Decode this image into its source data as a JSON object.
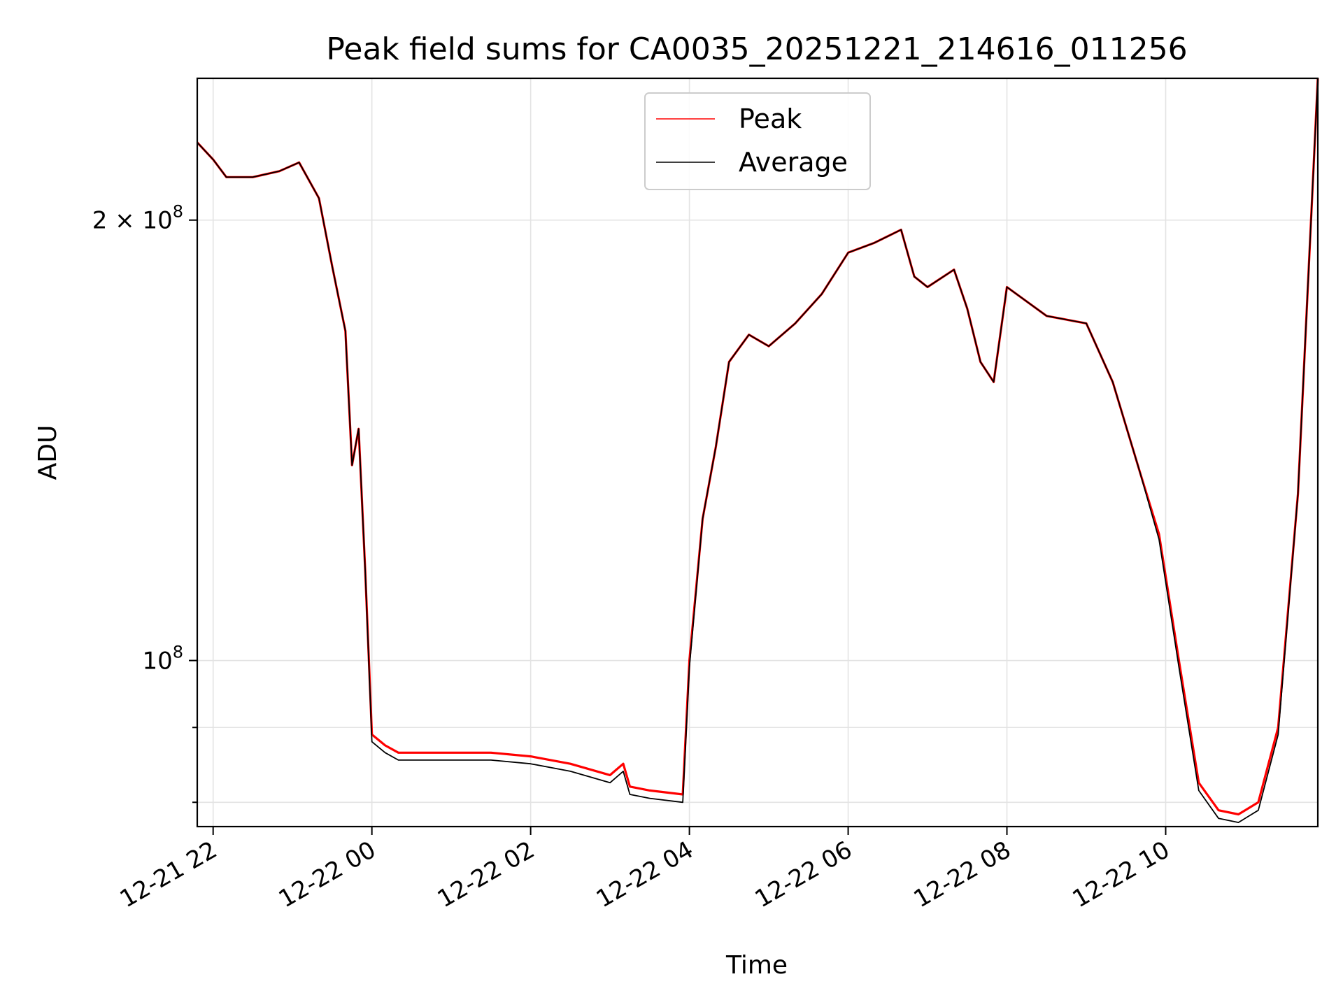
{
  "chart_data": {
    "type": "line",
    "title": "Peak field sums for CA0035_20251221_214616_011256",
    "xlabel": "Time",
    "ylabel": "ADU",
    "y_scale": "log",
    "grid": true,
    "legend_position": "top-center",
    "xlim": [
      "2025-12-21 21:48",
      "2025-12-22 11:55"
    ],
    "ylim": [
      77000000,
      250000000
    ],
    "x_ticks": [
      {
        "value": "2025-12-21 22:00",
        "label": "12-21 22"
      },
      {
        "value": "2025-12-22 00:00",
        "label": "12-22 00"
      },
      {
        "value": "2025-12-22 02:00",
        "label": "12-22 02"
      },
      {
        "value": "2025-12-22 04:00",
        "label": "12-22 04"
      },
      {
        "value": "2025-12-22 06:00",
        "label": "12-22 06"
      },
      {
        "value": "2025-12-22 08:00",
        "label": "12-22 08"
      },
      {
        "value": "2025-12-22 10:00",
        "label": "12-22 10"
      }
    ],
    "y_major_ticks": [
      {
        "value": 100000000,
        "base": "10",
        "exp": "8"
      },
      {
        "value": 200000000,
        "mantissa": "2 × ",
        "base": "10",
        "exp": "8"
      }
    ],
    "y_minor_ticks": [
      80000000,
      90000000
    ],
    "series": [
      {
        "name": "Peak",
        "color": "#ff0000",
        "x": [
          "2025-12-21 21:48",
          "2025-12-21 22:00",
          "2025-12-21 22:10",
          "2025-12-21 22:30",
          "2025-12-21 22:50",
          "2025-12-21 23:05",
          "2025-12-21 23:20",
          "2025-12-21 23:30",
          "2025-12-21 23:40",
          "2025-12-21 23:45",
          "2025-12-21 23:50",
          "2025-12-21 23:55",
          "2025-12-22 00:00",
          "2025-12-22 00:10",
          "2025-12-22 00:20",
          "2025-12-22 01:00",
          "2025-12-22 01:30",
          "2025-12-22 02:00",
          "2025-12-22 02:30",
          "2025-12-22 03:00",
          "2025-12-22 03:10",
          "2025-12-22 03:15",
          "2025-12-22 03:30",
          "2025-12-22 03:55",
          "2025-12-22 04:00",
          "2025-12-22 04:10",
          "2025-12-22 04:20",
          "2025-12-22 04:30",
          "2025-12-22 04:45",
          "2025-12-22 05:00",
          "2025-12-22 05:20",
          "2025-12-22 05:40",
          "2025-12-22 06:00",
          "2025-12-22 06:20",
          "2025-12-22 06:40",
          "2025-12-22 06:50",
          "2025-12-22 07:00",
          "2025-12-22 07:20",
          "2025-12-22 07:30",
          "2025-12-22 07:40",
          "2025-12-22 07:50",
          "2025-12-22 08:00",
          "2025-12-22 08:30",
          "2025-12-22 09:00",
          "2025-12-22 09:20",
          "2025-12-22 09:40",
          "2025-12-22 09:55",
          "2025-12-22 10:10",
          "2025-12-22 10:25",
          "2025-12-22 10:40",
          "2025-12-22 10:55",
          "2025-12-22 11:10",
          "2025-12-22 11:25",
          "2025-12-22 11:40",
          "2025-12-22 11:55"
        ],
        "y": [
          226000000,
          220000000,
          214000000,
          214000000,
          216000000,
          219000000,
          207000000,
          186000000,
          168000000,
          136000000,
          144000000,
          115000000,
          89000000,
          87500000,
          86500000,
          86500000,
          86500000,
          86000000,
          85000000,
          83500000,
          85000000,
          82000000,
          81500000,
          81000000,
          100000000,
          125000000,
          140000000,
          160000000,
          167000000,
          164000000,
          170000000,
          178000000,
          190000000,
          193000000,
          197000000,
          183000000,
          180000000,
          185000000,
          174000000,
          160000000,
          155000000,
          180000000,
          172000000,
          170000000,
          155000000,
          135000000,
          122000000,
          100000000,
          82500000,
          79000000,
          78500000,
          80000000,
          90000000,
          130000000,
          250000000
        ]
      },
      {
        "name": "Average",
        "color": "#000000",
        "x": [
          "2025-12-21 21:48",
          "2025-12-21 22:00",
          "2025-12-21 22:10",
          "2025-12-21 22:30",
          "2025-12-21 22:50",
          "2025-12-21 23:05",
          "2025-12-21 23:20",
          "2025-12-21 23:30",
          "2025-12-21 23:40",
          "2025-12-21 23:45",
          "2025-12-21 23:50",
          "2025-12-21 23:55",
          "2025-12-22 00:00",
          "2025-12-22 00:10",
          "2025-12-22 00:20",
          "2025-12-22 01:00",
          "2025-12-22 01:30",
          "2025-12-22 02:00",
          "2025-12-22 02:30",
          "2025-12-22 03:00",
          "2025-12-22 03:10",
          "2025-12-22 03:15",
          "2025-12-22 03:30",
          "2025-12-22 03:55",
          "2025-12-22 04:00",
          "2025-12-22 04:10",
          "2025-12-22 04:20",
          "2025-12-22 04:30",
          "2025-12-22 04:45",
          "2025-12-22 05:00",
          "2025-12-22 05:20",
          "2025-12-22 05:40",
          "2025-12-22 06:00",
          "2025-12-22 06:20",
          "2025-12-22 06:40",
          "2025-12-22 06:50",
          "2025-12-22 07:00",
          "2025-12-22 07:20",
          "2025-12-22 07:30",
          "2025-12-22 07:40",
          "2025-12-22 07:50",
          "2025-12-22 08:00",
          "2025-12-22 08:30",
          "2025-12-22 09:00",
          "2025-12-22 09:20",
          "2025-12-22 09:40",
          "2025-12-22 09:55",
          "2025-12-22 10:10",
          "2025-12-22 10:25",
          "2025-12-22 10:40",
          "2025-12-22 10:55",
          "2025-12-22 11:10",
          "2025-12-22 11:25",
          "2025-12-22 11:40",
          "2025-12-22 11:55"
        ],
        "y": [
          226000000,
          220000000,
          214000000,
          214000000,
          216000000,
          219000000,
          207000000,
          186000000,
          168000000,
          136000000,
          144000000,
          115000000,
          88000000,
          86500000,
          85500000,
          85500000,
          85500000,
          85000000,
          84000000,
          82500000,
          84000000,
          81000000,
          80500000,
          80000000,
          99000000,
          125000000,
          140000000,
          160000000,
          167000000,
          164000000,
          170000000,
          178000000,
          190000000,
          193000000,
          197000000,
          183000000,
          180000000,
          185000000,
          174000000,
          160000000,
          155000000,
          180000000,
          172000000,
          170000000,
          155000000,
          135000000,
          121000000,
          99000000,
          81500000,
          78000000,
          77500000,
          79000000,
          89000000,
          130000000,
          250000000
        ]
      }
    ]
  }
}
